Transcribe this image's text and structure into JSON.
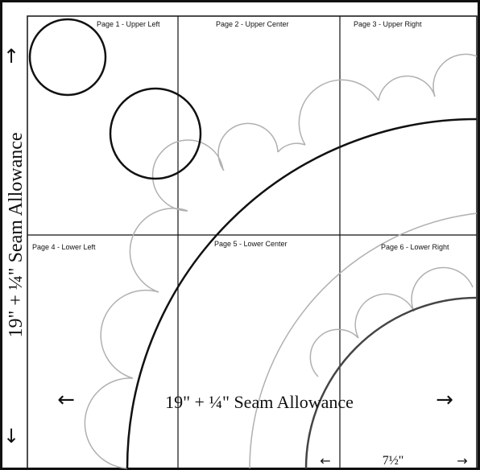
{
  "pages": [
    {
      "label": "Page 1 - Upper Left"
    },
    {
      "label": "Page 2 - Upper Center"
    },
    {
      "label": "Page 3 - Upper Right"
    },
    {
      "label": "Page 4 - Lower Left"
    },
    {
      "label": "Page 5 - Lower Center"
    },
    {
      "label": "Page 6 - Lower Right"
    }
  ],
  "dimensions": {
    "horizontal": "19\" + ¼\" Seam Allowance",
    "vertical": "19\" + ¼\" Seam Allowance",
    "radius": "7½\""
  },
  "arrows": {
    "left": "←",
    "right": "→",
    "up": "↑",
    "down": "↓"
  },
  "colors": {
    "line": "#111111",
    "scallop": "#b0b0b0",
    "background": "#ffffff"
  }
}
